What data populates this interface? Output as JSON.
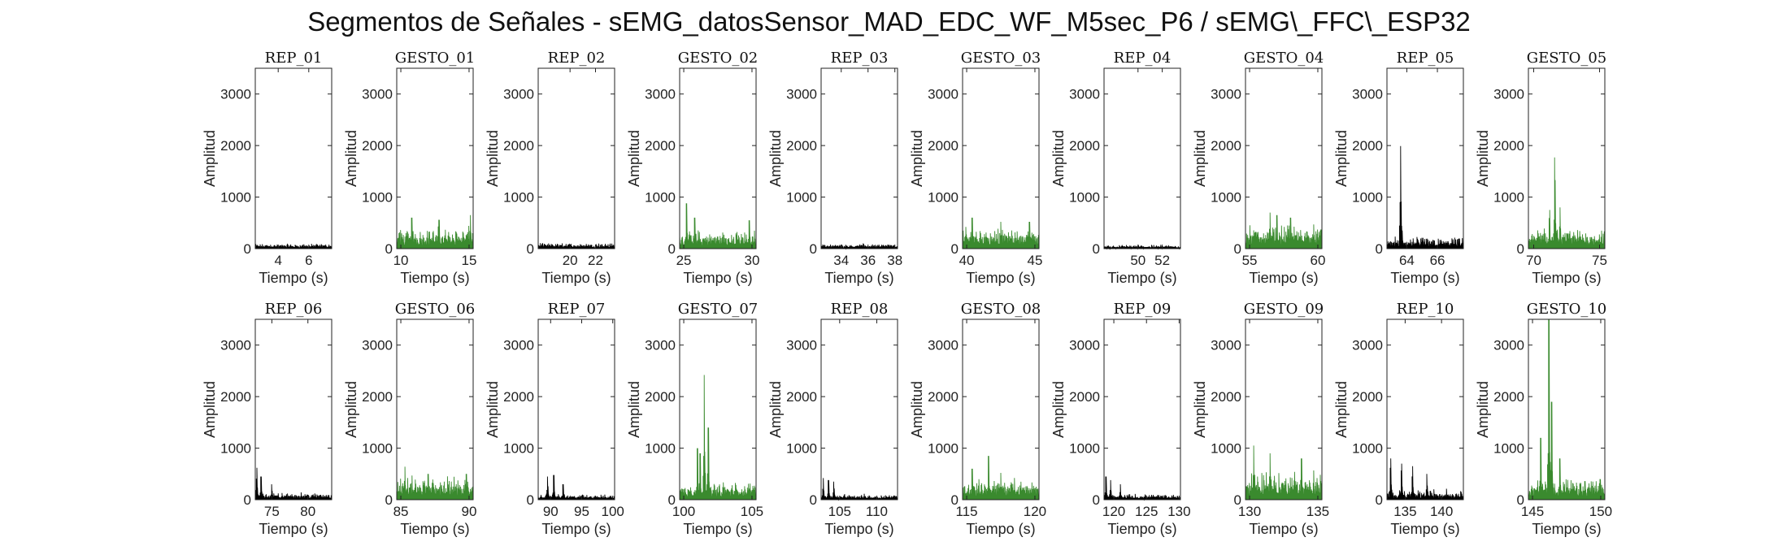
{
  "figure": {
    "title": "Segmentos de Señales - sEMG_datosSensor_MAD_EDC_WF_M5sec_P6 / sEMG\\_FFC\\_ESP32"
  },
  "colors": {
    "rep": "#000000",
    "gesto": "#3a8a2e"
  },
  "chart_data": {
    "type": "area",
    "layout": "2x10 small multiples",
    "xlabel": "Tiempo (s)",
    "ylabel": "Amplitud",
    "ylim": [
      0,
      3500
    ],
    "yticks": [
      0,
      1000,
      2000,
      3000
    ],
    "panels": [
      {
        "title": "REP_01",
        "kind": "rep",
        "xlim": [
          2.5,
          7.5
        ],
        "xticks": [
          4,
          6
        ],
        "baseline": 60,
        "noise": 45,
        "peaks": []
      },
      {
        "title": "GESTO_01",
        "kind": "gesto",
        "xlim": [
          9.7,
          15.3
        ],
        "xticks": [
          10,
          15
        ],
        "baseline": 230,
        "noise": 230,
        "peaks": [
          [
            10.8,
            600
          ],
          [
            12.8,
            560
          ],
          [
            15.1,
            650
          ]
        ]
      },
      {
        "title": "REP_02",
        "kind": "rep",
        "xlim": [
          17.5,
          23.5
        ],
        "xticks": [
          20,
          22
        ],
        "baseline": 70,
        "noise": 50,
        "peaks": []
      },
      {
        "title": "GESTO_02",
        "kind": "gesto",
        "xlim": [
          24.7,
          30.3
        ],
        "xticks": [
          25,
          30
        ],
        "baseline": 200,
        "noise": 180,
        "peaks": [
          [
            25.2,
            880
          ],
          [
            25.8,
            600
          ],
          [
            29.8,
            550
          ]
        ]
      },
      {
        "title": "REP_03",
        "kind": "rep",
        "xlim": [
          32.5,
          38.2
        ],
        "xticks": [
          34,
          36,
          38
        ],
        "baseline": 60,
        "noise": 45,
        "peaks": []
      },
      {
        "title": "GESTO_03",
        "kind": "gesto",
        "xlim": [
          39.7,
          45.3
        ],
        "xticks": [
          40,
          45
        ],
        "baseline": 240,
        "noise": 200,
        "peaks": [
          [
            40.4,
            600
          ],
          [
            42.5,
            520
          ],
          [
            44.6,
            520
          ]
        ]
      },
      {
        "title": "REP_04",
        "kind": "rep",
        "xlim": [
          47.2,
          53.5
        ],
        "xticks": [
          50,
          52
        ],
        "baseline": 45,
        "noise": 35,
        "peaks": []
      },
      {
        "title": "GESTO_04",
        "kind": "gesto",
        "xlim": [
          54.7,
          60.3
        ],
        "xticks": [
          55,
          60
        ],
        "baseline": 260,
        "noise": 250,
        "peaks": [
          [
            56.5,
            700
          ],
          [
            57.0,
            650
          ],
          [
            58.0,
            600
          ]
        ]
      },
      {
        "title": "REP_05",
        "kind": "rep",
        "xlim": [
          62.7,
          67.7
        ],
        "xticks": [
          64,
          66
        ],
        "baseline": 120,
        "noise": 120,
        "peaks": [
          [
            63.6,
            1990
          ]
        ]
      },
      {
        "title": "GESTO_05",
        "kind": "gesto",
        "xlim": [
          69.6,
          75.4
        ],
        "xticks": [
          70,
          75
        ],
        "baseline": 230,
        "noise": 200,
        "peaks": [
          [
            71.6,
            1770
          ],
          [
            71.2,
            750
          ],
          [
            72.0,
            800
          ]
        ]
      },
      {
        "title": "REP_06",
        "kind": "rep",
        "xlim": [
          72.7,
          83.3
        ],
        "xticks": [
          75,
          80
        ],
        "baseline": 80,
        "noise": 70,
        "peaks": [
          [
            72.9,
            620
          ],
          [
            73.5,
            450
          ],
          [
            75.0,
            300
          ]
        ]
      },
      {
        "title": "GESTO_06",
        "kind": "gesto",
        "xlim": [
          84.7,
          90.3
        ],
        "xticks": [
          85,
          90
        ],
        "baseline": 260,
        "noise": 230,
        "peaks": [
          [
            85.3,
            640
          ],
          [
            87.0,
            500
          ],
          [
            89.8,
            500
          ]
        ]
      },
      {
        "title": "REP_07",
        "kind": "rep",
        "xlim": [
          88.0,
          100.3
        ],
        "xticks": [
          90,
          95,
          100
        ],
        "baseline": 60,
        "noise": 50,
        "peaks": [
          [
            89.5,
            450
          ],
          [
            90.5,
            480
          ],
          [
            92.0,
            300
          ]
        ]
      },
      {
        "title": "GESTO_07",
        "kind": "gesto",
        "xlim": [
          99.7,
          105.3
        ],
        "xticks": [
          100,
          105
        ],
        "baseline": 200,
        "noise": 180,
        "peaks": [
          [
            101.5,
            2420
          ],
          [
            101.0,
            1000
          ],
          [
            101.2,
            900
          ],
          [
            101.8,
            1400
          ]
        ]
      },
      {
        "title": "REP_08",
        "kind": "rep",
        "xlim": [
          102.5,
          112.8
        ],
        "xticks": [
          105,
          110
        ],
        "baseline": 60,
        "noise": 60,
        "peaks": [
          [
            102.8,
            420
          ],
          [
            103.5,
            380
          ],
          [
            104.2,
            350
          ]
        ]
      },
      {
        "title": "GESTO_08",
        "kind": "gesto",
        "xlim": [
          114.7,
          120.3
        ],
        "xticks": [
          115,
          120
        ],
        "baseline": 230,
        "noise": 220,
        "peaks": [
          [
            115.4,
            600
          ],
          [
            116.6,
            850
          ],
          [
            117.5,
            520
          ]
        ]
      },
      {
        "title": "REP_09",
        "kind": "rep",
        "xlim": [
          118.5,
          130.2
        ],
        "xticks": [
          120,
          125,
          130
        ],
        "baseline": 60,
        "noise": 60,
        "peaks": [
          [
            118.8,
            450
          ],
          [
            119.5,
            380
          ],
          [
            121.0,
            300
          ]
        ]
      },
      {
        "title": "GESTO_09",
        "kind": "gesto",
        "xlim": [
          129.7,
          135.3
        ],
        "xticks": [
          130,
          135
        ],
        "baseline": 280,
        "noise": 350,
        "peaks": [
          [
            130.3,
            1050
          ],
          [
            131.5,
            900
          ],
          [
            133.8,
            800
          ]
        ]
      },
      {
        "title": "REP_10",
        "kind": "rep",
        "xlim": [
          132.5,
          143.0
        ],
        "xticks": [
          135,
          140
        ],
        "baseline": 100,
        "noise": 120,
        "peaks": [
          [
            133.0,
            800
          ],
          [
            134.5,
            700
          ],
          [
            136.0,
            650
          ],
          [
            138.0,
            500
          ]
        ]
      },
      {
        "title": "GESTO_10",
        "kind": "gesto",
        "xlim": [
          144.7,
          150.3
        ],
        "xticks": [
          145,
          150
        ],
        "baseline": 230,
        "noise": 220,
        "peaks": [
          [
            146.2,
            3500
          ],
          [
            145.6,
            1200
          ],
          [
            146.4,
            1900
          ],
          [
            147.0,
            800
          ]
        ]
      }
    ]
  }
}
